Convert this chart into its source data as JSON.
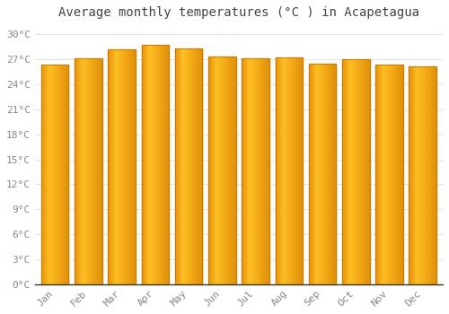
{
  "title": "Average monthly temperatures (°C ) in Acapetagua",
  "months": [
    "Jan",
    "Feb",
    "Mar",
    "Apr",
    "May",
    "Jun",
    "Jul",
    "Aug",
    "Sep",
    "Oct",
    "Nov",
    "Dec"
  ],
  "values": [
    26.4,
    27.1,
    28.2,
    28.7,
    28.3,
    27.3,
    27.1,
    27.2,
    26.5,
    27.0,
    26.4,
    26.2
  ],
  "bar_color_left": "#E8920A",
  "bar_color_center": "#FCC024",
  "bar_color_right": "#F5AB18",
  "bar_edge_color": "#C07800",
  "background_color": "#FFFFFF",
  "grid_color": "#DDDDDD",
  "ylim": [
    0,
    31
  ],
  "yticks": [
    0,
    3,
    6,
    9,
    12,
    15,
    18,
    21,
    24,
    27,
    30
  ],
  "ylabel_suffix": "°C",
  "title_fontsize": 10,
  "tick_fontsize": 8,
  "tick_color": "#888888",
  "bar_width": 0.82
}
